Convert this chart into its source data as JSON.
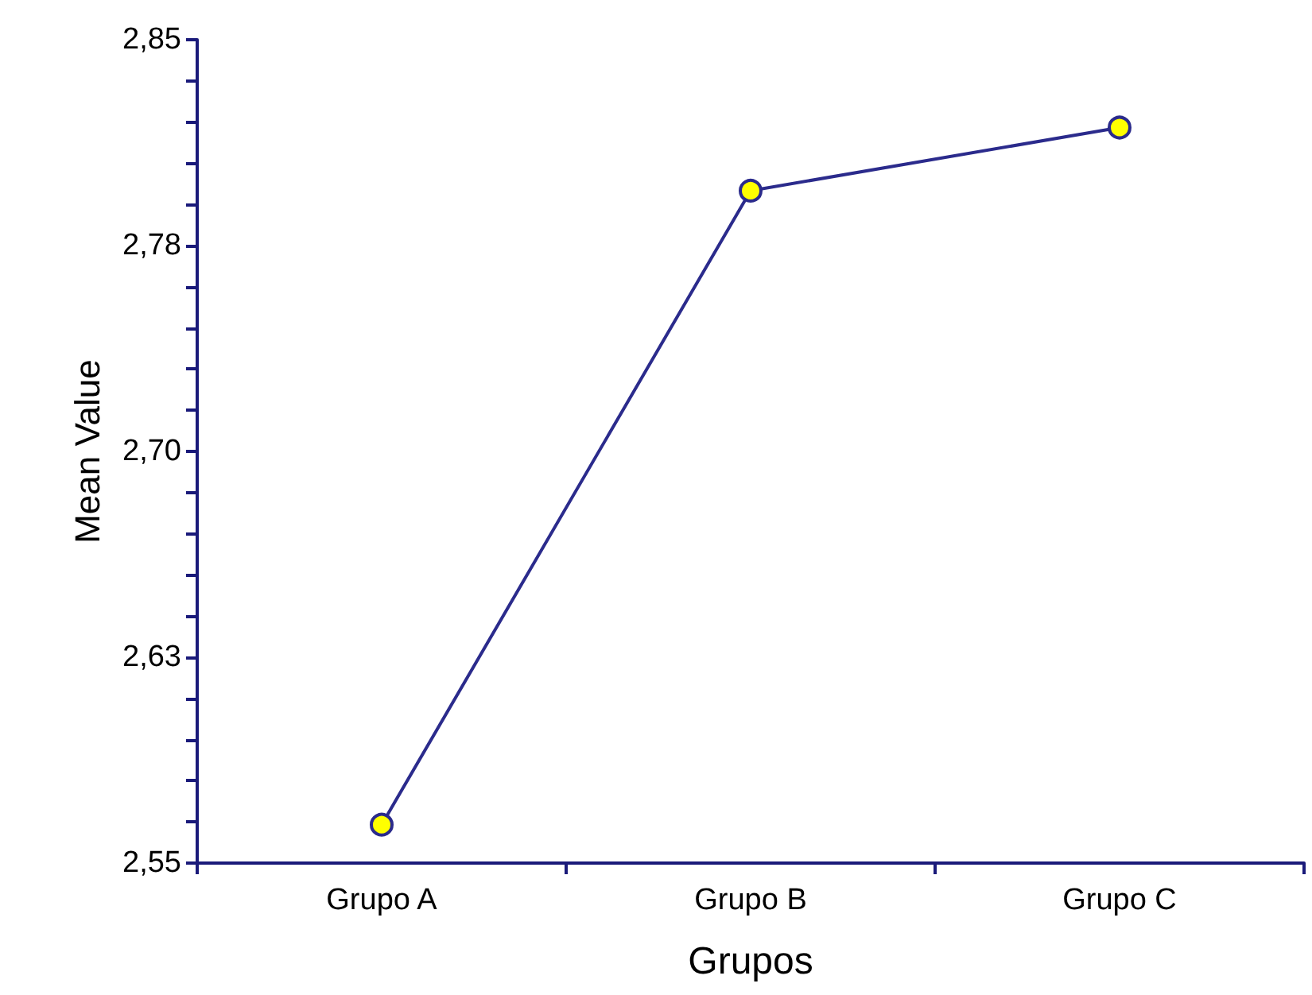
{
  "chart_data": {
    "type": "line",
    "xlabel": "Grupos",
    "ylabel": "Mean Value",
    "categories": [
      "Grupo A",
      "Grupo B",
      "Grupo C"
    ],
    "series": [
      {
        "color": "#2b2b8c",
        "values": [
          2.564,
          2.795,
          2.818
        ]
      }
    ],
    "ylim": [
      2.55,
      2.85
    ],
    "yticks": [
      {
        "value": 2.55,
        "label": "2,55"
      },
      {
        "value": 2.565,
        "label": null
      },
      {
        "value": 2.58,
        "label": null
      },
      {
        "value": 2.595,
        "label": null
      },
      {
        "value": 2.61,
        "label": null
      },
      {
        "value": 2.625,
        "label": "2,63"
      },
      {
        "value": 2.64,
        "label": null
      },
      {
        "value": 2.655,
        "label": null
      },
      {
        "value": 2.67,
        "label": null
      },
      {
        "value": 2.685,
        "label": null
      },
      {
        "value": 2.7,
        "label": "2,70"
      },
      {
        "value": 2.715,
        "label": null
      },
      {
        "value": 2.73,
        "label": null
      },
      {
        "value": 2.745,
        "label": null
      },
      {
        "value": 2.76,
        "label": null
      },
      {
        "value": 2.775,
        "label": "2,78"
      },
      {
        "value": 2.79,
        "label": null
      },
      {
        "value": 2.805,
        "label": null
      },
      {
        "value": 2.82,
        "label": null
      },
      {
        "value": 2.835,
        "label": null
      },
      {
        "value": 2.85,
        "label": "2,85"
      }
    ],
    "grid": false,
    "marker": "circle",
    "line_style": "solid"
  }
}
